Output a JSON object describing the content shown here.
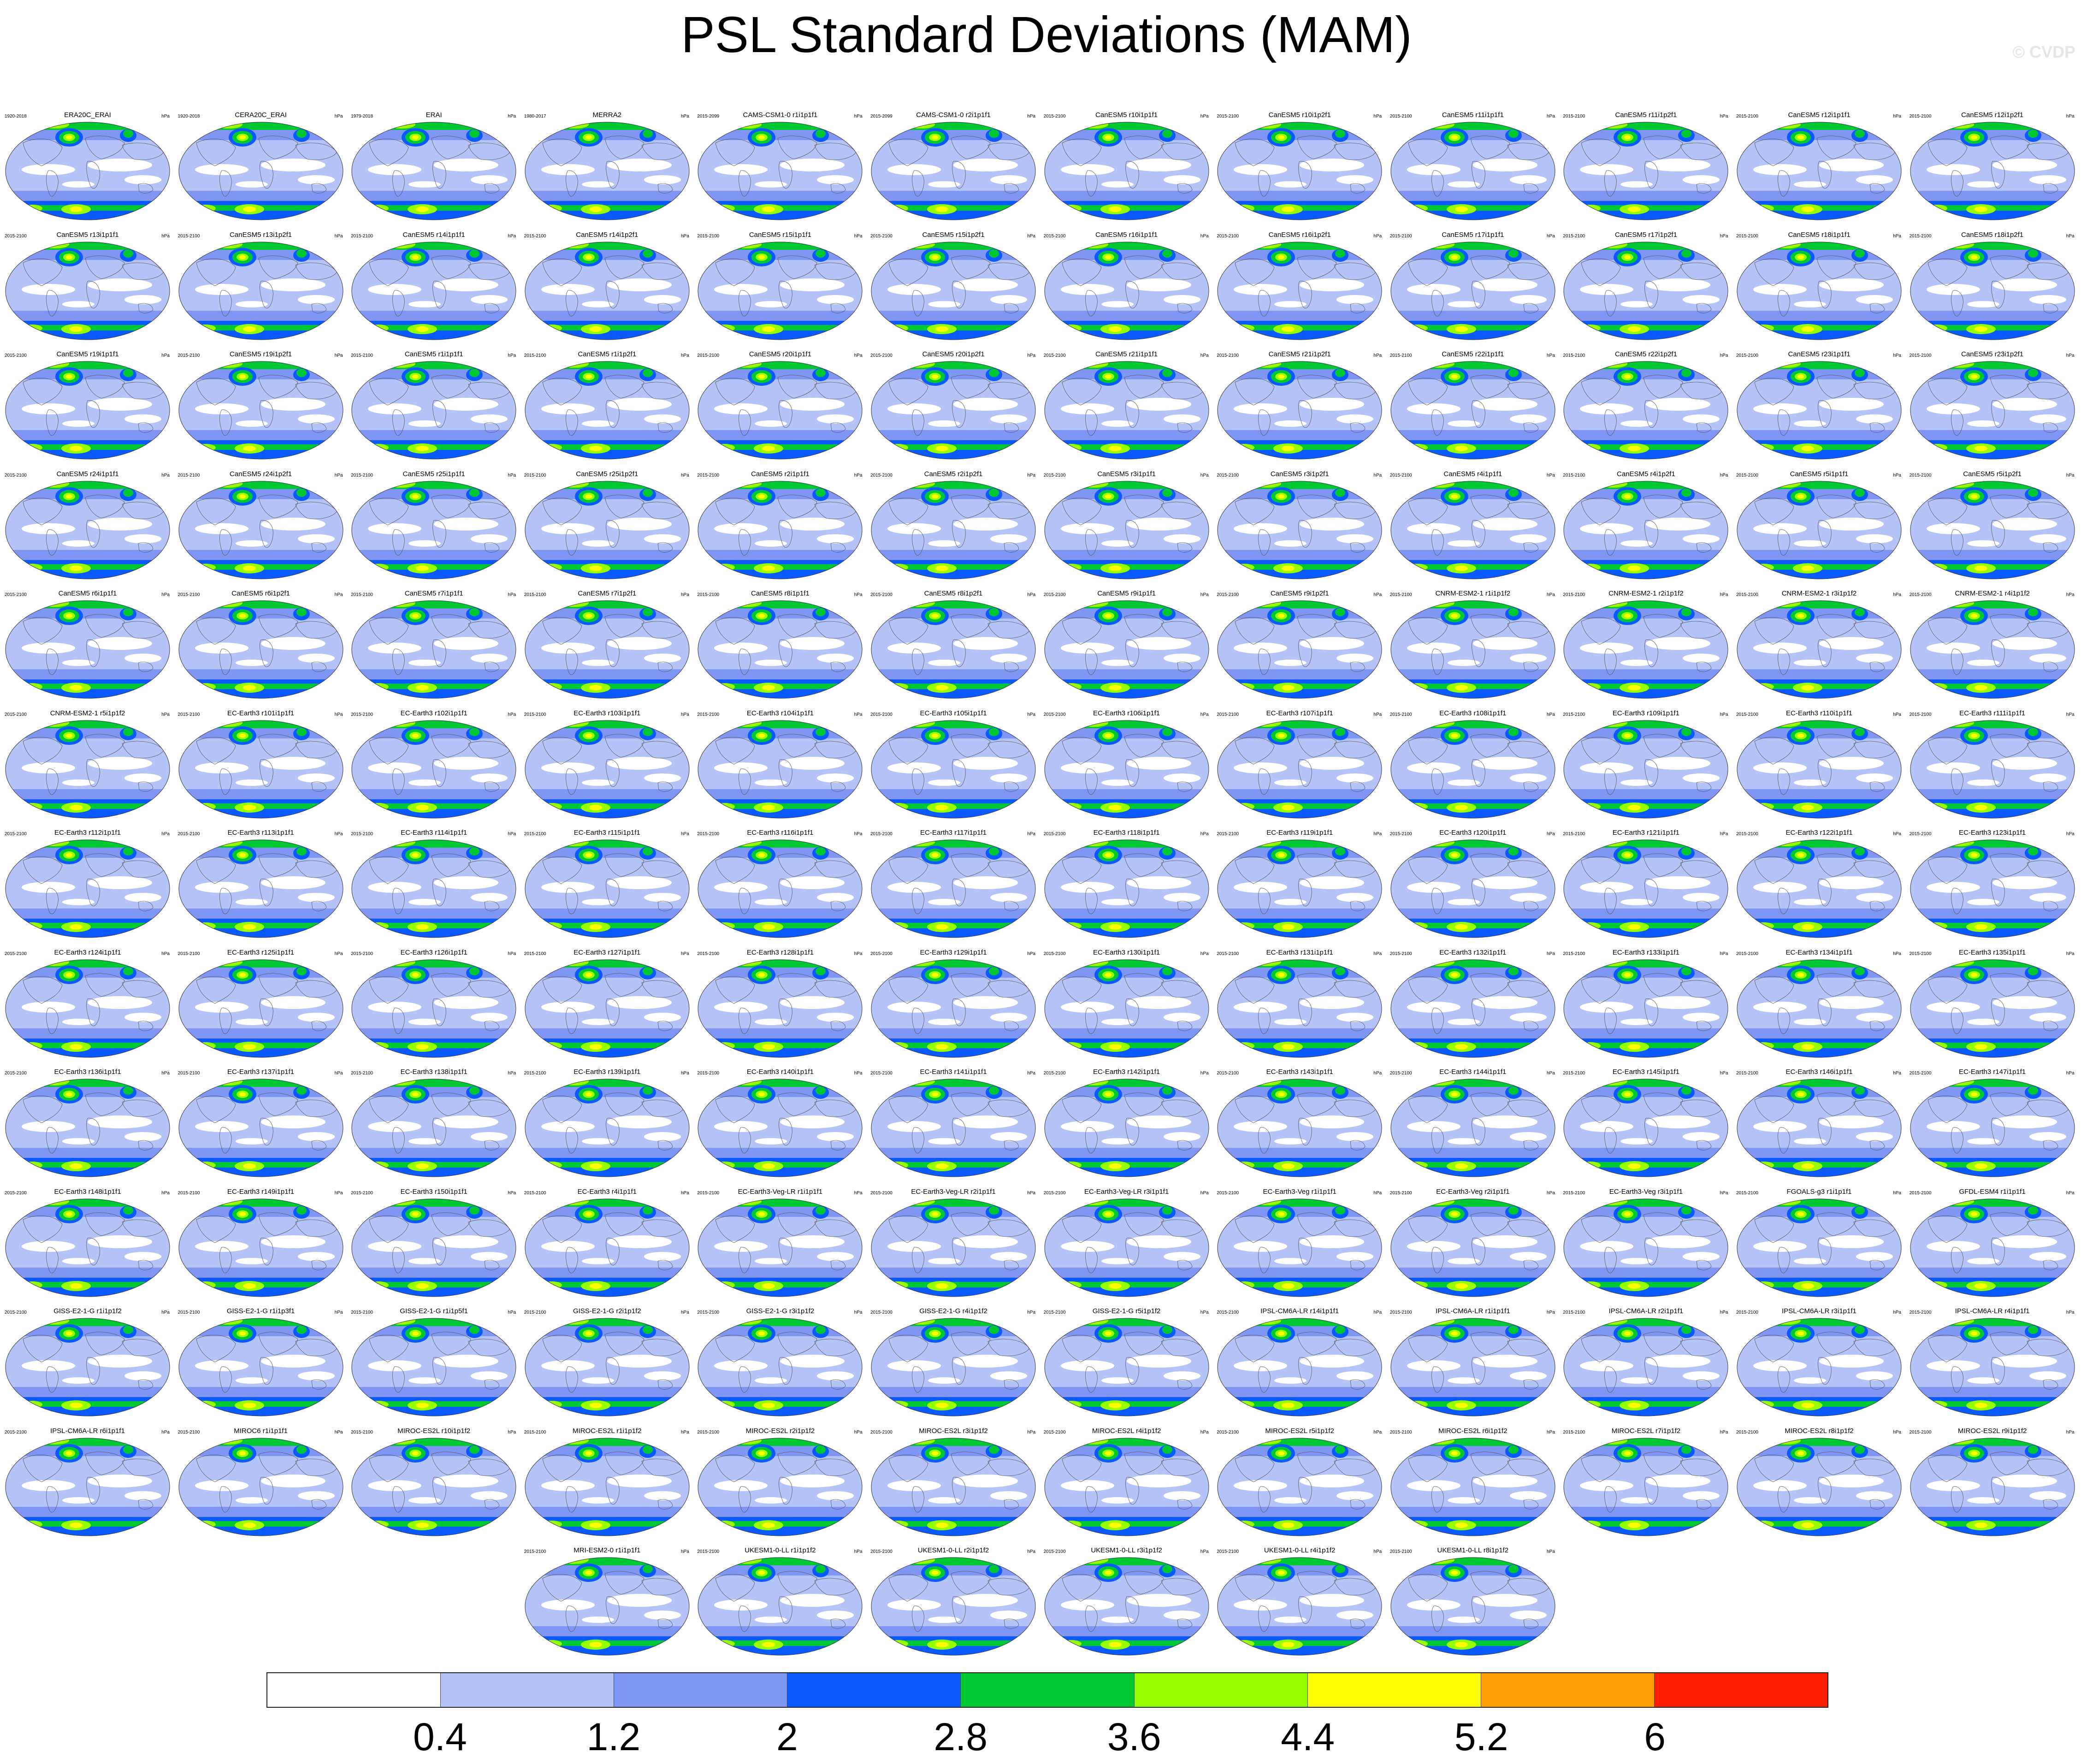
{
  "title": "PSL Standard Deviations (MAM)",
  "watermark": "© CVDP",
  "chart_data": {
    "type": "heatmap",
    "title": "PSL Standard Deviations (MAM)",
    "unit": "hPa",
    "levels": [
      "0.4",
      "1.2",
      "2",
      "2.8",
      "3.6",
      "4.4",
      "5.2",
      "6"
    ],
    "colors": [
      "#ffffff",
      "#b4c3f8",
      "#8096f5",
      "#0a5aff",
      "#00c832",
      "#96ff00",
      "#ffff00",
      "#ffa000",
      "#ff1e00"
    ],
    "panels": [
      {
        "name": "ERA20C_ERAI",
        "years": "1920-2018"
      },
      {
        "name": "CERA20C_ERAI",
        "years": "1920-2018"
      },
      {
        "name": "ERAI",
        "years": "1979-2018"
      },
      {
        "name": "MERRA2",
        "years": "1980-2017"
      },
      {
        "name": "CAMS-CSM1-0 r1i1p1f1",
        "years": "2015-2099"
      },
      {
        "name": "CAMS-CSM1-0 r2i1p1f1",
        "years": "2015-2099"
      },
      {
        "name": "CanESM5 r10i1p1f1",
        "years": "2015-2100"
      },
      {
        "name": "CanESM5 r10i1p2f1",
        "years": "2015-2100"
      },
      {
        "name": "CanESM5 r11i1p1f1",
        "years": "2015-2100"
      },
      {
        "name": "CanESM5 r11i1p2f1",
        "years": "2015-2100"
      },
      {
        "name": "CanESM5 r12i1p1f1",
        "years": "2015-2100"
      },
      {
        "name": "CanESM5 r12i1p2f1",
        "years": "2015-2100"
      },
      {
        "name": "CanESM5 r13i1p1f1",
        "years": "2015-2100"
      },
      {
        "name": "CanESM5 r13i1p2f1",
        "years": "2015-2100"
      },
      {
        "name": "CanESM5 r14i1p1f1",
        "years": "2015-2100"
      },
      {
        "name": "CanESM5 r14i1p2f1",
        "years": "2015-2100"
      },
      {
        "name": "CanESM5 r15i1p1f1",
        "years": "2015-2100"
      },
      {
        "name": "CanESM5 r15i1p2f1",
        "years": "2015-2100"
      },
      {
        "name": "CanESM5 r16i1p1f1",
        "years": "2015-2100"
      },
      {
        "name": "CanESM5 r16i1p2f1",
        "years": "2015-2100"
      },
      {
        "name": "CanESM5 r17i1p1f1",
        "years": "2015-2100"
      },
      {
        "name": "CanESM5 r17i1p2f1",
        "years": "2015-2100"
      },
      {
        "name": "CanESM5 r18i1p1f1",
        "years": "2015-2100"
      },
      {
        "name": "CanESM5 r18i1p2f1",
        "years": "2015-2100"
      },
      {
        "name": "CanESM5 r19i1p1f1",
        "years": "2015-2100"
      },
      {
        "name": "CanESM5 r19i1p2f1",
        "years": "2015-2100"
      },
      {
        "name": "CanESM5 r1i1p1f1",
        "years": "2015-2100"
      },
      {
        "name": "CanESM5 r1i1p2f1",
        "years": "2015-2100"
      },
      {
        "name": "CanESM5 r20i1p1f1",
        "years": "2015-2100"
      },
      {
        "name": "CanESM5 r20i1p2f1",
        "years": "2015-2100"
      },
      {
        "name": "CanESM5 r21i1p1f1",
        "years": "2015-2100"
      },
      {
        "name": "CanESM5 r21i1p2f1",
        "years": "2015-2100"
      },
      {
        "name": "CanESM5 r22i1p1f1",
        "years": "2015-2100"
      },
      {
        "name": "CanESM5 r22i1p2f1",
        "years": "2015-2100"
      },
      {
        "name": "CanESM5 r23i1p1f1",
        "years": "2015-2100"
      },
      {
        "name": "CanESM5 r23i1p2f1",
        "years": "2015-2100"
      },
      {
        "name": "CanESM5 r24i1p1f1",
        "years": "2015-2100"
      },
      {
        "name": "CanESM5 r24i1p2f1",
        "years": "2015-2100"
      },
      {
        "name": "CanESM5 r25i1p1f1",
        "years": "2015-2100"
      },
      {
        "name": "CanESM5 r25i1p2f1",
        "years": "2015-2100"
      },
      {
        "name": "CanESM5 r2i1p1f1",
        "years": "2015-2100"
      },
      {
        "name": "CanESM5 r2i1p2f1",
        "years": "2015-2100"
      },
      {
        "name": "CanESM5 r3i1p1f1",
        "years": "2015-2100"
      },
      {
        "name": "CanESM5 r3i1p2f1",
        "years": "2015-2100"
      },
      {
        "name": "CanESM5 r4i1p1f1",
        "years": "2015-2100"
      },
      {
        "name": "CanESM5 r4i1p2f1",
        "years": "2015-2100"
      },
      {
        "name": "CanESM5 r5i1p1f1",
        "years": "2015-2100"
      },
      {
        "name": "CanESM5 r5i1p2f1",
        "years": "2015-2100"
      },
      {
        "name": "CanESM5 r6i1p1f1",
        "years": "2015-2100"
      },
      {
        "name": "CanESM5 r6i1p2f1",
        "years": "2015-2100"
      },
      {
        "name": "CanESM5 r7i1p1f1",
        "years": "2015-2100"
      },
      {
        "name": "CanESM5 r7i1p2f1",
        "years": "2015-2100"
      },
      {
        "name": "CanESM5 r8i1p1f1",
        "years": "2015-2100"
      },
      {
        "name": "CanESM5 r8i1p2f1",
        "years": "2015-2100"
      },
      {
        "name": "CanESM5 r9i1p1f1",
        "years": "2015-2100"
      },
      {
        "name": "CanESM5 r9i1p2f1",
        "years": "2015-2100"
      },
      {
        "name": "CNRM-ESM2-1 r1i1p1f2",
        "years": "2015-2100"
      },
      {
        "name": "CNRM-ESM2-1 r2i1p1f2",
        "years": "2015-2100"
      },
      {
        "name": "CNRM-ESM2-1 r3i1p1f2",
        "years": "2015-2100"
      },
      {
        "name": "CNRM-ESM2-1 r4i1p1f2",
        "years": "2015-2100"
      },
      {
        "name": "CNRM-ESM2-1 r5i1p1f2",
        "years": "2015-2100"
      },
      {
        "name": "EC-Earth3 r101i1p1f1",
        "years": "2015-2100"
      },
      {
        "name": "EC-Earth3 r102i1p1f1",
        "years": "2015-2100"
      },
      {
        "name": "EC-Earth3 r103i1p1f1",
        "years": "2015-2100"
      },
      {
        "name": "EC-Earth3 r104i1p1f1",
        "years": "2015-2100"
      },
      {
        "name": "EC-Earth3 r105i1p1f1",
        "years": "2015-2100"
      },
      {
        "name": "EC-Earth3 r106i1p1f1",
        "years": "2015-2100"
      },
      {
        "name": "EC-Earth3 r107i1p1f1",
        "years": "2015-2100"
      },
      {
        "name": "EC-Earth3 r108i1p1f1",
        "years": "2015-2100"
      },
      {
        "name": "EC-Earth3 r109i1p1f1",
        "years": "2015-2100"
      },
      {
        "name": "EC-Earth3 r110i1p1f1",
        "years": "2015-2100"
      },
      {
        "name": "EC-Earth3 r111i1p1f1",
        "years": "2015-2100"
      },
      {
        "name": "EC-Earth3 r112i1p1f1",
        "years": "2015-2100"
      },
      {
        "name": "EC-Earth3 r113i1p1f1",
        "years": "2015-2100"
      },
      {
        "name": "EC-Earth3 r114i1p1f1",
        "years": "2015-2100"
      },
      {
        "name": "EC-Earth3 r115i1p1f1",
        "years": "2015-2100"
      },
      {
        "name": "EC-Earth3 r116i1p1f1",
        "years": "2015-2100"
      },
      {
        "name": "EC-Earth3 r117i1p1f1",
        "years": "2015-2100"
      },
      {
        "name": "EC-Earth3 r118i1p1f1",
        "years": "2015-2100"
      },
      {
        "name": "EC-Earth3 r119i1p1f1",
        "years": "2015-2100"
      },
      {
        "name": "EC-Earth3 r120i1p1f1",
        "years": "2015-2100"
      },
      {
        "name": "EC-Earth3 r121i1p1f1",
        "years": "2015-2100"
      },
      {
        "name": "EC-Earth3 r122i1p1f1",
        "years": "2015-2100"
      },
      {
        "name": "EC-Earth3 r123i1p1f1",
        "years": "2015-2100"
      },
      {
        "name": "EC-Earth3 r124i1p1f1",
        "years": "2015-2100"
      },
      {
        "name": "EC-Earth3 r125i1p1f1",
        "years": "2015-2100"
      },
      {
        "name": "EC-Earth3 r126i1p1f1",
        "years": "2015-2100"
      },
      {
        "name": "EC-Earth3 r127i1p1f1",
        "years": "2015-2100"
      },
      {
        "name": "EC-Earth3 r128i1p1f1",
        "years": "2015-2100"
      },
      {
        "name": "EC-Earth3 r129i1p1f1",
        "years": "2015-2100"
      },
      {
        "name": "EC-Earth3 r130i1p1f1",
        "years": "2015-2100"
      },
      {
        "name": "EC-Earth3 r131i1p1f1",
        "years": "2015-2100"
      },
      {
        "name": "EC-Earth3 r132i1p1f1",
        "years": "2015-2100"
      },
      {
        "name": "EC-Earth3 r133i1p1f1",
        "years": "2015-2100"
      },
      {
        "name": "EC-Earth3 r134i1p1f1",
        "years": "2015-2100"
      },
      {
        "name": "EC-Earth3 r135i1p1f1",
        "years": "2015-2100"
      },
      {
        "name": "EC-Earth3 r136i1p1f1",
        "years": "2015-2100"
      },
      {
        "name": "EC-Earth3 r137i1p1f1",
        "years": "2015-2100"
      },
      {
        "name": "EC-Earth3 r138i1p1f1",
        "years": "2015-2100"
      },
      {
        "name": "EC-Earth3 r139i1p1f1",
        "years": "2015-2100"
      },
      {
        "name": "EC-Earth3 r140i1p1f1",
        "years": "2015-2100"
      },
      {
        "name": "EC-Earth3 r141i1p1f1",
        "years": "2015-2100"
      },
      {
        "name": "EC-Earth3 r142i1p1f1",
        "years": "2015-2100"
      },
      {
        "name": "EC-Earth3 r143i1p1f1",
        "years": "2015-2100"
      },
      {
        "name": "EC-Earth3 r144i1p1f1",
        "years": "2015-2100"
      },
      {
        "name": "EC-Earth3 r145i1p1f1",
        "years": "2015-2100"
      },
      {
        "name": "EC-Earth3 r146i1p1f1",
        "years": "2015-2100"
      },
      {
        "name": "EC-Earth3 r147i1p1f1",
        "years": "2015-2100"
      },
      {
        "name": "EC-Earth3 r148i1p1f1",
        "years": "2015-2100"
      },
      {
        "name": "EC-Earth3 r149i1p1f1",
        "years": "2015-2100"
      },
      {
        "name": "EC-Earth3 r150i1p1f1",
        "years": "2015-2100"
      },
      {
        "name": "EC-Earth3 r4i1p1f1",
        "years": "2015-2100"
      },
      {
        "name": "EC-Earth3-Veg-LR r1i1p1f1",
        "years": "2015-2100"
      },
      {
        "name": "EC-Earth3-Veg-LR r2i1p1f1",
        "years": "2015-2100"
      },
      {
        "name": "EC-Earth3-Veg-LR r3i1p1f1",
        "years": "2015-2100"
      },
      {
        "name": "EC-Earth3-Veg r1i1p1f1",
        "years": "2015-2100"
      },
      {
        "name": "EC-Earth3-Veg r2i1p1f1",
        "years": "2015-2100"
      },
      {
        "name": "EC-Earth3-Veg r3i1p1f1",
        "years": "2015-2100"
      },
      {
        "name": "FGOALS-g3 r1i1p1f1",
        "years": "2015-2100"
      },
      {
        "name": "GFDL-ESM4 r1i1p1f1",
        "years": "2015-2100"
      },
      {
        "name": "GISS-E2-1-G r1i1p1f2",
        "years": "2015-2100"
      },
      {
        "name": "GISS-E2-1-G r1i1p3f1",
        "years": "2015-2100"
      },
      {
        "name": "GISS-E2-1-G r1i1p5f1",
        "years": "2015-2100"
      },
      {
        "name": "GISS-E2-1-G r2i1p1f2",
        "years": "2015-2100"
      },
      {
        "name": "GISS-E2-1-G r3i1p1f2",
        "years": "2015-2100"
      },
      {
        "name": "GISS-E2-1-G r4i1p1f2",
        "years": "2015-2100"
      },
      {
        "name": "GISS-E2-1-G r5i1p1f2",
        "years": "2015-2100"
      },
      {
        "name": "IPSL-CM6A-LR r14i1p1f1",
        "years": "2015-2100"
      },
      {
        "name": "IPSL-CM6A-LR r1i1p1f1",
        "years": "2015-2100"
      },
      {
        "name": "IPSL-CM6A-LR r2i1p1f1",
        "years": "2015-2100"
      },
      {
        "name": "IPSL-CM6A-LR r3i1p1f1",
        "years": "2015-2100"
      },
      {
        "name": "IPSL-CM6A-LR r4i1p1f1",
        "years": "2015-2100"
      },
      {
        "name": "IPSL-CM6A-LR r6i1p1f1",
        "years": "2015-2100"
      },
      {
        "name": "MIROC6 r1i1p1f1",
        "years": "2015-2100"
      },
      {
        "name": "MIROC-ES2L r10i1p1f2",
        "years": "2015-2100"
      },
      {
        "name": "MIROC-ES2L r1i1p1f2",
        "years": "2015-2100"
      },
      {
        "name": "MIROC-ES2L r2i1p1f2",
        "years": "2015-2100"
      },
      {
        "name": "MIROC-ES2L r3i1p1f2",
        "years": "2015-2100"
      },
      {
        "name": "MIROC-ES2L r4i1p1f2",
        "years": "2015-2100"
      },
      {
        "name": "MIROC-ES2L r5i1p1f2",
        "years": "2015-2100"
      },
      {
        "name": "MIROC-ES2L r6i1p1f2",
        "years": "2015-2100"
      },
      {
        "name": "MIROC-ES2L r7i1p1f2",
        "years": "2015-2100"
      },
      {
        "name": "MIROC-ES2L r8i1p1f2",
        "years": "2015-2100"
      },
      {
        "name": "MIROC-ES2L r9i1p1f2",
        "years": "2015-2100"
      },
      {
        "name": "MRI-ESM2-0 r1i1p1f1",
        "years": "2015-2100"
      },
      {
        "name": "UKESM1-0-LL r1i1p1f2",
        "years": "2015-2100"
      },
      {
        "name": "UKESM1-0-LL r2i1p1f2",
        "years": "2015-2100"
      },
      {
        "name": "UKESM1-0-LL r3i1p1f2",
        "years": "2015-2100"
      },
      {
        "name": "UKESM1-0-LL r4i1p1f2",
        "years": "2015-2100"
      },
      {
        "name": "UKESM1-0-LL r8i1p1f2",
        "years": "2015-2100"
      }
    ]
  }
}
